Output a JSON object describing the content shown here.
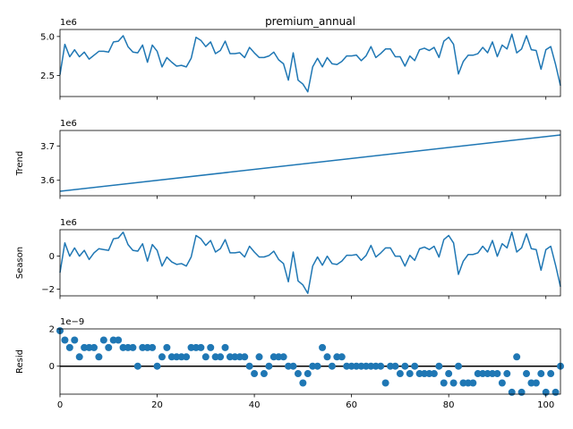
{
  "chart_data": [
    {
      "type": "line",
      "title": "premium_annual",
      "ylabel": "",
      "offset_text": "1e6",
      "xlim": [
        0,
        103
      ],
      "ylim": [
        1.15,
        5.45
      ],
      "yticks": [
        2.5,
        5.0
      ],
      "ytick_labels": [
        "2.5",
        "5.0"
      ],
      "x": [
        0,
        1,
        2,
        3,
        4,
        5,
        6,
        7,
        8,
        9,
        10,
        11,
        12,
        13,
        14,
        15,
        16,
        17,
        18,
        19,
        20,
        21,
        22,
        23,
        24,
        25,
        26,
        27,
        28,
        29,
        30,
        31,
        32,
        33,
        34,
        35,
        36,
        37,
        38,
        39,
        40,
        41,
        42,
        43,
        44,
        45,
        46,
        47,
        48,
        49,
        50,
        51,
        52,
        53,
        54,
        55,
        56,
        57,
        58,
        59,
        60,
        61,
        62,
        63,
        64,
        65,
        66,
        67,
        68,
        69,
        70,
        71,
        72,
        73,
        74,
        75,
        76,
        77,
        78,
        79,
        80,
        81,
        82,
        83,
        84,
        85,
        86,
        87,
        88,
        89,
        90,
        91,
        92,
        93,
        94,
        95,
        96,
        97,
        98,
        99,
        100,
        101,
        102,
        103
      ],
      "values": [
        2.55,
        4.5,
        3.7,
        4.15,
        3.7,
        4.0,
        3.55,
        3.8,
        4.05,
        4.05,
        4.0,
        4.65,
        4.7,
        5.05,
        4.35,
        4.0,
        3.95,
        4.45,
        3.35,
        4.45,
        4.05,
        3.05,
        3.65,
        3.35,
        3.1,
        3.15,
        3.05,
        3.6,
        4.95,
        4.75,
        4.35,
        4.65,
        3.9,
        4.1,
        4.7,
        3.9,
        3.9,
        3.95,
        3.65,
        4.3,
        3.95,
        3.65,
        3.65,
        3.75,
        4.0,
        3.5,
        3.25,
        2.2,
        3.95,
        2.2,
        1.95,
        1.45,
        3.05,
        3.6,
        3.05,
        3.65,
        3.25,
        3.2,
        3.4,
        3.75,
        3.75,
        3.8,
        3.45,
        3.75,
        4.35,
        3.65,
        3.9,
        4.2,
        4.2,
        3.7,
        3.7,
        3.1,
        3.75,
        3.45,
        4.15,
        4.25,
        4.1,
        4.3,
        3.65,
        4.7,
        4.95,
        4.5,
        2.6,
        3.4,
        3.8,
        3.8,
        3.9,
        4.3,
        3.95,
        4.65,
        3.7,
        4.45,
        4.2,
        5.15,
        3.95,
        4.2,
        5.05,
        4.15,
        4.1,
        2.9,
        4.15,
        4.35,
        3.2,
        1.85
      ]
    },
    {
      "type": "line",
      "title": "",
      "ylabel": "Trend",
      "offset_text": "1e6",
      "xlim": [
        0,
        103
      ],
      "ylim": [
        3.555,
        3.745
      ],
      "yticks": [
        3.6,
        3.7
      ],
      "ytick_labels": [
        "3.6",
        "3.7"
      ],
      "x": [
        0,
        103
      ],
      "values": [
        3.568,
        3.732
      ]
    },
    {
      "type": "line",
      "title": "",
      "ylabel": "Season",
      "offset_text": "1e6",
      "xlim": [
        0,
        103
      ],
      "ylim": [
        -2.4,
        1.6
      ],
      "yticks": [
        -2,
        0
      ],
      "ytick_labels": [
        "−2",
        "0"
      ],
      "x": [
        0,
        1,
        2,
        3,
        4,
        5,
        6,
        7,
        8,
        9,
        10,
        11,
        12,
        13,
        14,
        15,
        16,
        17,
        18,
        19,
        20,
        21,
        22,
        23,
        24,
        25,
        26,
        27,
        28,
        29,
        30,
        31,
        32,
        33,
        34,
        35,
        36,
        37,
        38,
        39,
        40,
        41,
        42,
        43,
        44,
        45,
        46,
        47,
        48,
        49,
        50,
        51,
        52,
        53,
        54,
        55,
        56,
        57,
        58,
        59,
        60,
        61,
        62,
        63,
        64,
        65,
        66,
        67,
        68,
        69,
        70,
        71,
        72,
        73,
        74,
        75,
        76,
        77,
        78,
        79,
        80,
        81,
        82,
        83,
        84,
        85,
        86,
        87,
        88,
        89,
        90,
        91,
        92,
        93,
        94,
        95,
        96,
        97,
        98,
        99,
        100,
        101,
        102,
        103
      ],
      "values": [
        -1.0,
        0.8,
        0.0,
        0.5,
        0.0,
        0.35,
        -0.2,
        0.2,
        0.45,
        0.4,
        0.35,
        1.05,
        1.1,
        1.45,
        0.7,
        0.35,
        0.3,
        0.75,
        -0.3,
        0.7,
        0.35,
        -0.6,
        -0.05,
        -0.35,
        -0.5,
        -0.45,
        -0.6,
        -0.05,
        1.25,
        1.05,
        0.65,
        0.95,
        0.25,
        0.45,
        1.0,
        0.2,
        0.2,
        0.25,
        -0.05,
        0.6,
        0.25,
        -0.05,
        -0.05,
        0.05,
        0.3,
        -0.2,
        -0.45,
        -1.55,
        0.25,
        -1.5,
        -1.75,
        -2.25,
        -0.6,
        -0.05,
        -0.55,
        0.0,
        -0.45,
        -0.5,
        -0.3,
        0.05,
        0.05,
        0.1,
        -0.25,
        0.05,
        0.65,
        -0.05,
        0.2,
        0.5,
        0.5,
        0.0,
        0.0,
        -0.6,
        0.05,
        -0.25,
        0.45,
        0.55,
        0.4,
        0.6,
        -0.05,
        1.0,
        1.25,
        0.8,
        -1.1,
        -0.3,
        0.1,
        0.1,
        0.2,
        0.6,
        0.25,
        0.95,
        0.0,
        0.75,
        0.5,
        1.45,
        0.25,
        0.5,
        1.35,
        0.45,
        0.4,
        -0.85,
        0.4,
        0.6,
        -0.55,
        -1.85
      ]
    },
    {
      "type": "scatter",
      "title": "",
      "ylabel": "Resid",
      "offset_text": "1e−9",
      "xlim": [
        0,
        103
      ],
      "ylim": [
        -1.5,
        2.0
      ],
      "yticks": [
        0,
        2
      ],
      "ytick_labels": [
        "0",
        "2"
      ],
      "xticks": [
        0,
        20,
        40,
        60,
        80,
        100
      ],
      "xtick_labels": [
        "0",
        "20",
        "40",
        "60",
        "80",
        "100"
      ],
      "x": [
        0,
        1,
        2,
        3,
        4,
        5,
        6,
        7,
        8,
        9,
        10,
        11,
        12,
        13,
        14,
        15,
        16,
        17,
        18,
        19,
        20,
        21,
        22,
        23,
        24,
        25,
        26,
        27,
        28,
        29,
        30,
        31,
        32,
        33,
        34,
        35,
        36,
        37,
        38,
        39,
        40,
        41,
        42,
        43,
        44,
        45,
        46,
        47,
        48,
        49,
        50,
        51,
        52,
        53,
        54,
        55,
        56,
        57,
        58,
        59,
        60,
        61,
        62,
        63,
        64,
        65,
        66,
        67,
        68,
        69,
        70,
        71,
        72,
        73,
        74,
        75,
        76,
        77,
        78,
        79,
        80,
        81,
        82,
        83,
        84,
        85,
        86,
        87,
        88,
        89,
        90,
        91,
        92,
        93,
        94,
        95,
        96,
        97,
        98,
        99,
        100,
        101,
        102,
        103
      ],
      "values": [
        1.9,
        1.4,
        1.0,
        1.4,
        0.5,
        1.0,
        1.0,
        1.0,
        0.5,
        1.4,
        1.0,
        1.4,
        1.4,
        1.0,
        1.0,
        1.0,
        0.0,
        1.0,
        1.0,
        1.0,
        0.0,
        0.5,
        1.0,
        0.5,
        0.5,
        0.5,
        0.5,
        1.0,
        1.0,
        1.0,
        0.5,
        1.0,
        0.5,
        0.5,
        1.0,
        0.5,
        0.5,
        0.5,
        0.5,
        0.0,
        -0.4,
        0.5,
        -0.4,
        0.0,
        0.5,
        0.5,
        0.5,
        0.0,
        0.0,
        -0.4,
        -0.9,
        -0.4,
        0.0,
        0.0,
        1.0,
        0.5,
        0.0,
        0.5,
        0.5,
        0.0,
        0.0,
        0.0,
        0.0,
        0.0,
        0.0,
        0.0,
        0.0,
        -0.9,
        0.0,
        0.0,
        -0.4,
        0.0,
        -0.4,
        0.0,
        -0.4,
        -0.4,
        -0.4,
        -0.4,
        0.0,
        -0.9,
        -0.4,
        -0.9,
        0.0,
        -0.9,
        -0.9,
        -0.9,
        -0.4,
        -0.4,
        -0.4,
        -0.4,
        -0.4,
        -0.9,
        -0.4,
        -1.4,
        0.5,
        -1.4,
        -0.4,
        -0.9,
        -0.9,
        -0.4,
        -1.4,
        -0.4,
        -1.4,
        0.0
      ],
      "zero_line": true
    }
  ],
  "colors": {
    "series": "#1f77b4",
    "zero_line": "#000000",
    "axes": "#000000"
  }
}
